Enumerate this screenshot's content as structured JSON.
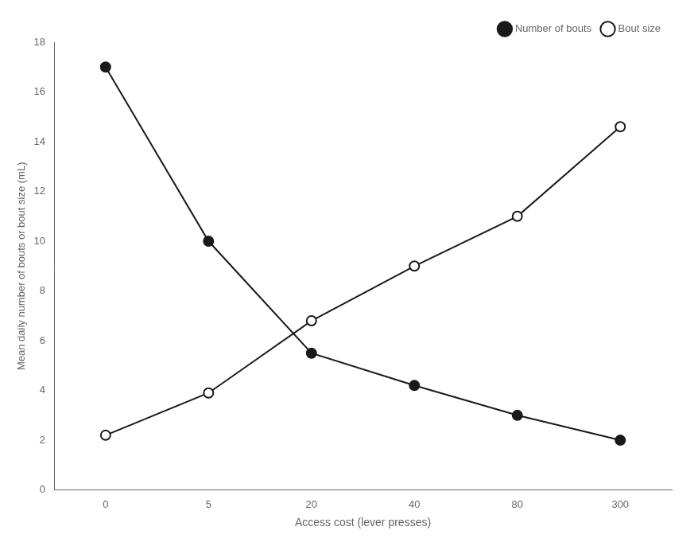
{
  "chart_data": {
    "type": "line",
    "xlabel": "Access cost (lever presses)",
    "ylabel": "Mean daily number of bouts or bout size (mL)",
    "categories": [
      "0",
      "5",
      "20",
      "40",
      "80",
      "300"
    ],
    "series": [
      {
        "name": "Number of bouts",
        "color": "#1a1a1a",
        "marker": "circle",
        "values": [
          17,
          10,
          5.5,
          4.2,
          3.0,
          2.0
        ]
      },
      {
        "name": "Bout size",
        "color": "#1a1a1a",
        "marker": "open_circle",
        "values": [
          2.2,
          3.9,
          6.8,
          9.0,
          11.0,
          14.6
        ]
      }
    ],
    "ylim": [
      0,
      18
    ],
    "yticks": [
      0,
      2,
      4,
      6,
      8,
      10,
      12,
      14,
      16,
      18
    ],
    "grid": false,
    "legend": "upper right"
  }
}
